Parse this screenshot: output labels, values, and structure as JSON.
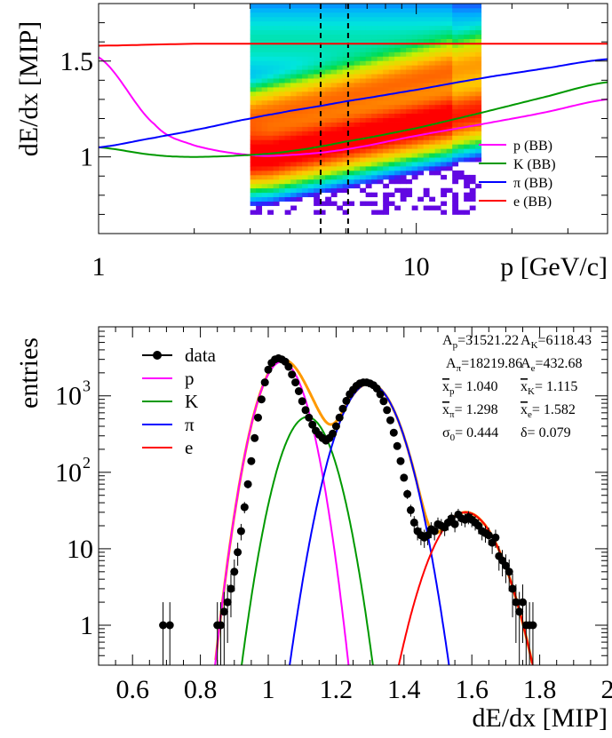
{
  "chart_data": [
    {
      "type": "heatmap",
      "xlabel": "p [GeV/c]",
      "ylabel": "dE/dx [MIP]",
      "x_scale": "log",
      "xlim": [
        1,
        40
      ],
      "ylim": [
        0.6,
        1.8
      ],
      "x_ticks": [
        {
          "value": 1,
          "label": "1"
        },
        {
          "value": 10,
          "label": "10"
        }
      ],
      "y_ticks": [
        {
          "value": 1,
          "label": "1"
        },
        {
          "value": 1.5,
          "label": "1.5"
        }
      ],
      "heatmap_ranges": {
        "p": [
          3,
          16
        ],
        "dEdx": [
          0.7,
          1.8
        ]
      },
      "dashed_lines_x": [
        5.0,
        6.1
      ],
      "series": [
        {
          "name": "p (BB)",
          "label_main": "p",
          "label_sub": "(BB)",
          "color": "#ff00ff",
          "x": [
            1,
            1.5,
            2,
            3,
            4,
            6,
            10,
            16,
            25,
            40
          ],
          "y": [
            1.52,
            1.17,
            1.06,
            1.01,
            1.01,
            1.04,
            1.11,
            1.17,
            1.23,
            1.3
          ]
        },
        {
          "name": "K (BB)",
          "label_main": "K",
          "label_sub": "(BB)",
          "color": "#009900",
          "x": [
            1,
            1.5,
            2,
            3,
            4,
            6,
            10,
            16,
            25,
            40
          ],
          "y": [
            1.05,
            1.01,
            1.0,
            1.01,
            1.03,
            1.08,
            1.15,
            1.23,
            1.31,
            1.39
          ]
        },
        {
          "name": "π (BB)",
          "label_main": "π",
          "label_sub": "(BB)",
          "color": "#0000ff",
          "x": [
            1,
            1.5,
            2,
            3,
            4,
            6,
            10,
            16,
            25,
            40
          ],
          "y": [
            1.05,
            1.1,
            1.14,
            1.2,
            1.24,
            1.29,
            1.35,
            1.41,
            1.46,
            1.51
          ]
        },
        {
          "name": "e (BB)",
          "label_main": "e",
          "label_sub": "(BB)",
          "color": "#ff0000",
          "x": [
            1,
            2,
            4,
            10,
            40
          ],
          "y": [
            1.58,
            1.59,
            1.59,
            1.59,
            1.59
          ]
        }
      ]
    },
    {
      "type": "scatter",
      "xlabel": "dE/dx [MIP]",
      "ylabel": "entries",
      "y_scale": "log",
      "xlim": [
        0.5,
        2.0
      ],
      "ylim": [
        0.3,
        8000
      ],
      "x_ticks": [
        {
          "value": 0.6,
          "label": "0.6"
        },
        {
          "value": 0.8,
          "label": "0.8"
        },
        {
          "value": 1.0,
          "label": "1"
        },
        {
          "value": 1.2,
          "label": "1.2"
        },
        {
          "value": 1.4,
          "label": "1.4"
        },
        {
          "value": 1.6,
          "label": "1.6"
        },
        {
          "value": 1.8,
          "label": "1.8"
        },
        {
          "value": 2.0,
          "label": "2"
        }
      ],
      "y_ticks": [
        {
          "value": 1,
          "main": "1",
          "sup": ""
        },
        {
          "value": 10,
          "main": "10",
          "sup": ""
        },
        {
          "value": 100,
          "main": "10",
          "sup": "2"
        },
        {
          "value": 1000,
          "main": "10",
          "sup": "3"
        }
      ],
      "legend": [
        {
          "label": "data",
          "kind": "marker",
          "color": "#000000"
        },
        {
          "label": "p",
          "kind": "line",
          "color": "#ff00ff"
        },
        {
          "label": "K",
          "kind": "line",
          "color": "#009900"
        },
        {
          "label": "π",
          "kind": "line",
          "color": "#0000ff"
        },
        {
          "label": "e",
          "kind": "line",
          "color": "#ff0000"
        }
      ],
      "fit_params": [
        {
          "main": "A",
          "sub": "p",
          "val": "=31521.22"
        },
        {
          "main": "A",
          "sub": "K",
          "val": "=6118.43"
        },
        {
          "main": "A",
          "sub": "π",
          "val": "=18219.86"
        },
        {
          "main": "A",
          "sub": "e",
          "val": "=432.68"
        },
        {
          "main": "x",
          "sub": "p",
          "val": "= 1.040",
          "overline": true
        },
        {
          "main": "x",
          "sub": "K",
          "val": "= 1.115",
          "overline": true
        },
        {
          "main": "x",
          "sub": "π",
          "val": "= 1.298",
          "overline": true
        },
        {
          "main": "x",
          "sub": "e",
          "val": "= 1.582",
          "overline": true
        },
        {
          "main": "σ",
          "sub": "0",
          "val": "= 0.444"
        },
        {
          "main": "δ",
          "sub": "",
          "val": "= 0.079"
        }
      ],
      "gaussians": [
        {
          "name": "p",
          "color": "#ff00ff",
          "amplitude": 2800,
          "mean": 1.04,
          "sigma": 0.046
        },
        {
          "name": "K",
          "color": "#009900",
          "amplitude": 530,
          "mean": 1.115,
          "sigma": 0.05
        },
        {
          "name": "π",
          "color": "#0000ff",
          "amplitude": 1450,
          "mean": 1.298,
          "sigma": 0.057
        },
        {
          "name": "e",
          "color": "#ff0000",
          "amplitude": 30,
          "mean": 1.582,
          "sigma": 0.065
        }
      ],
      "data_points": {
        "x": [
          0.69,
          0.71,
          0.85,
          0.86,
          0.87,
          0.88,
          0.89,
          0.9,
          0.91,
          0.92,
          0.93,
          0.94,
          0.95,
          0.96,
          0.97,
          0.98,
          0.99,
          1.0,
          1.01,
          1.02,
          1.03,
          1.04,
          1.05,
          1.06,
          1.07,
          1.08,
          1.09,
          1.1,
          1.11,
          1.12,
          1.13,
          1.14,
          1.15,
          1.16,
          1.17,
          1.18,
          1.19,
          1.2,
          1.21,
          1.22,
          1.23,
          1.24,
          1.25,
          1.26,
          1.27,
          1.28,
          1.29,
          1.3,
          1.31,
          1.32,
          1.33,
          1.34,
          1.35,
          1.36,
          1.37,
          1.38,
          1.39,
          1.4,
          1.41,
          1.42,
          1.43,
          1.44,
          1.45,
          1.46,
          1.47,
          1.48,
          1.49,
          1.5,
          1.51,
          1.52,
          1.53,
          1.54,
          1.55,
          1.56,
          1.57,
          1.58,
          1.59,
          1.6,
          1.61,
          1.62,
          1.63,
          1.64,
          1.65,
          1.66,
          1.67,
          1.68,
          1.69,
          1.7,
          1.71,
          1.72,
          1.73,
          1.74,
          1.75,
          1.76,
          1.77,
          1.78
        ],
        "y": [
          1,
          1,
          1,
          1,
          1.5,
          2,
          3,
          5,
          9,
          17,
          35,
          70,
          140,
          280,
          520,
          900,
          1500,
          2200,
          2700,
          3000,
          3100,
          3000,
          2800,
          2400,
          1900,
          1500,
          1150,
          850,
          650,
          520,
          420,
          350,
          310,
          280,
          260,
          280,
          320,
          400,
          520,
          680,
          860,
          1050,
          1200,
          1350,
          1450,
          1500,
          1500,
          1450,
          1380,
          1250,
          1050,
          850,
          650,
          480,
          330,
          220,
          140,
          85,
          52,
          32,
          22,
          17,
          15,
          14,
          15,
          18,
          17,
          21,
          20,
          19,
          22,
          25,
          21,
          28,
          25,
          24,
          26,
          24,
          22,
          20,
          17,
          16,
          15,
          12,
          14,
          8,
          7,
          6,
          5,
          3,
          2,
          1.5,
          2,
          1,
          1,
          1
        ]
      }
    }
  ]
}
